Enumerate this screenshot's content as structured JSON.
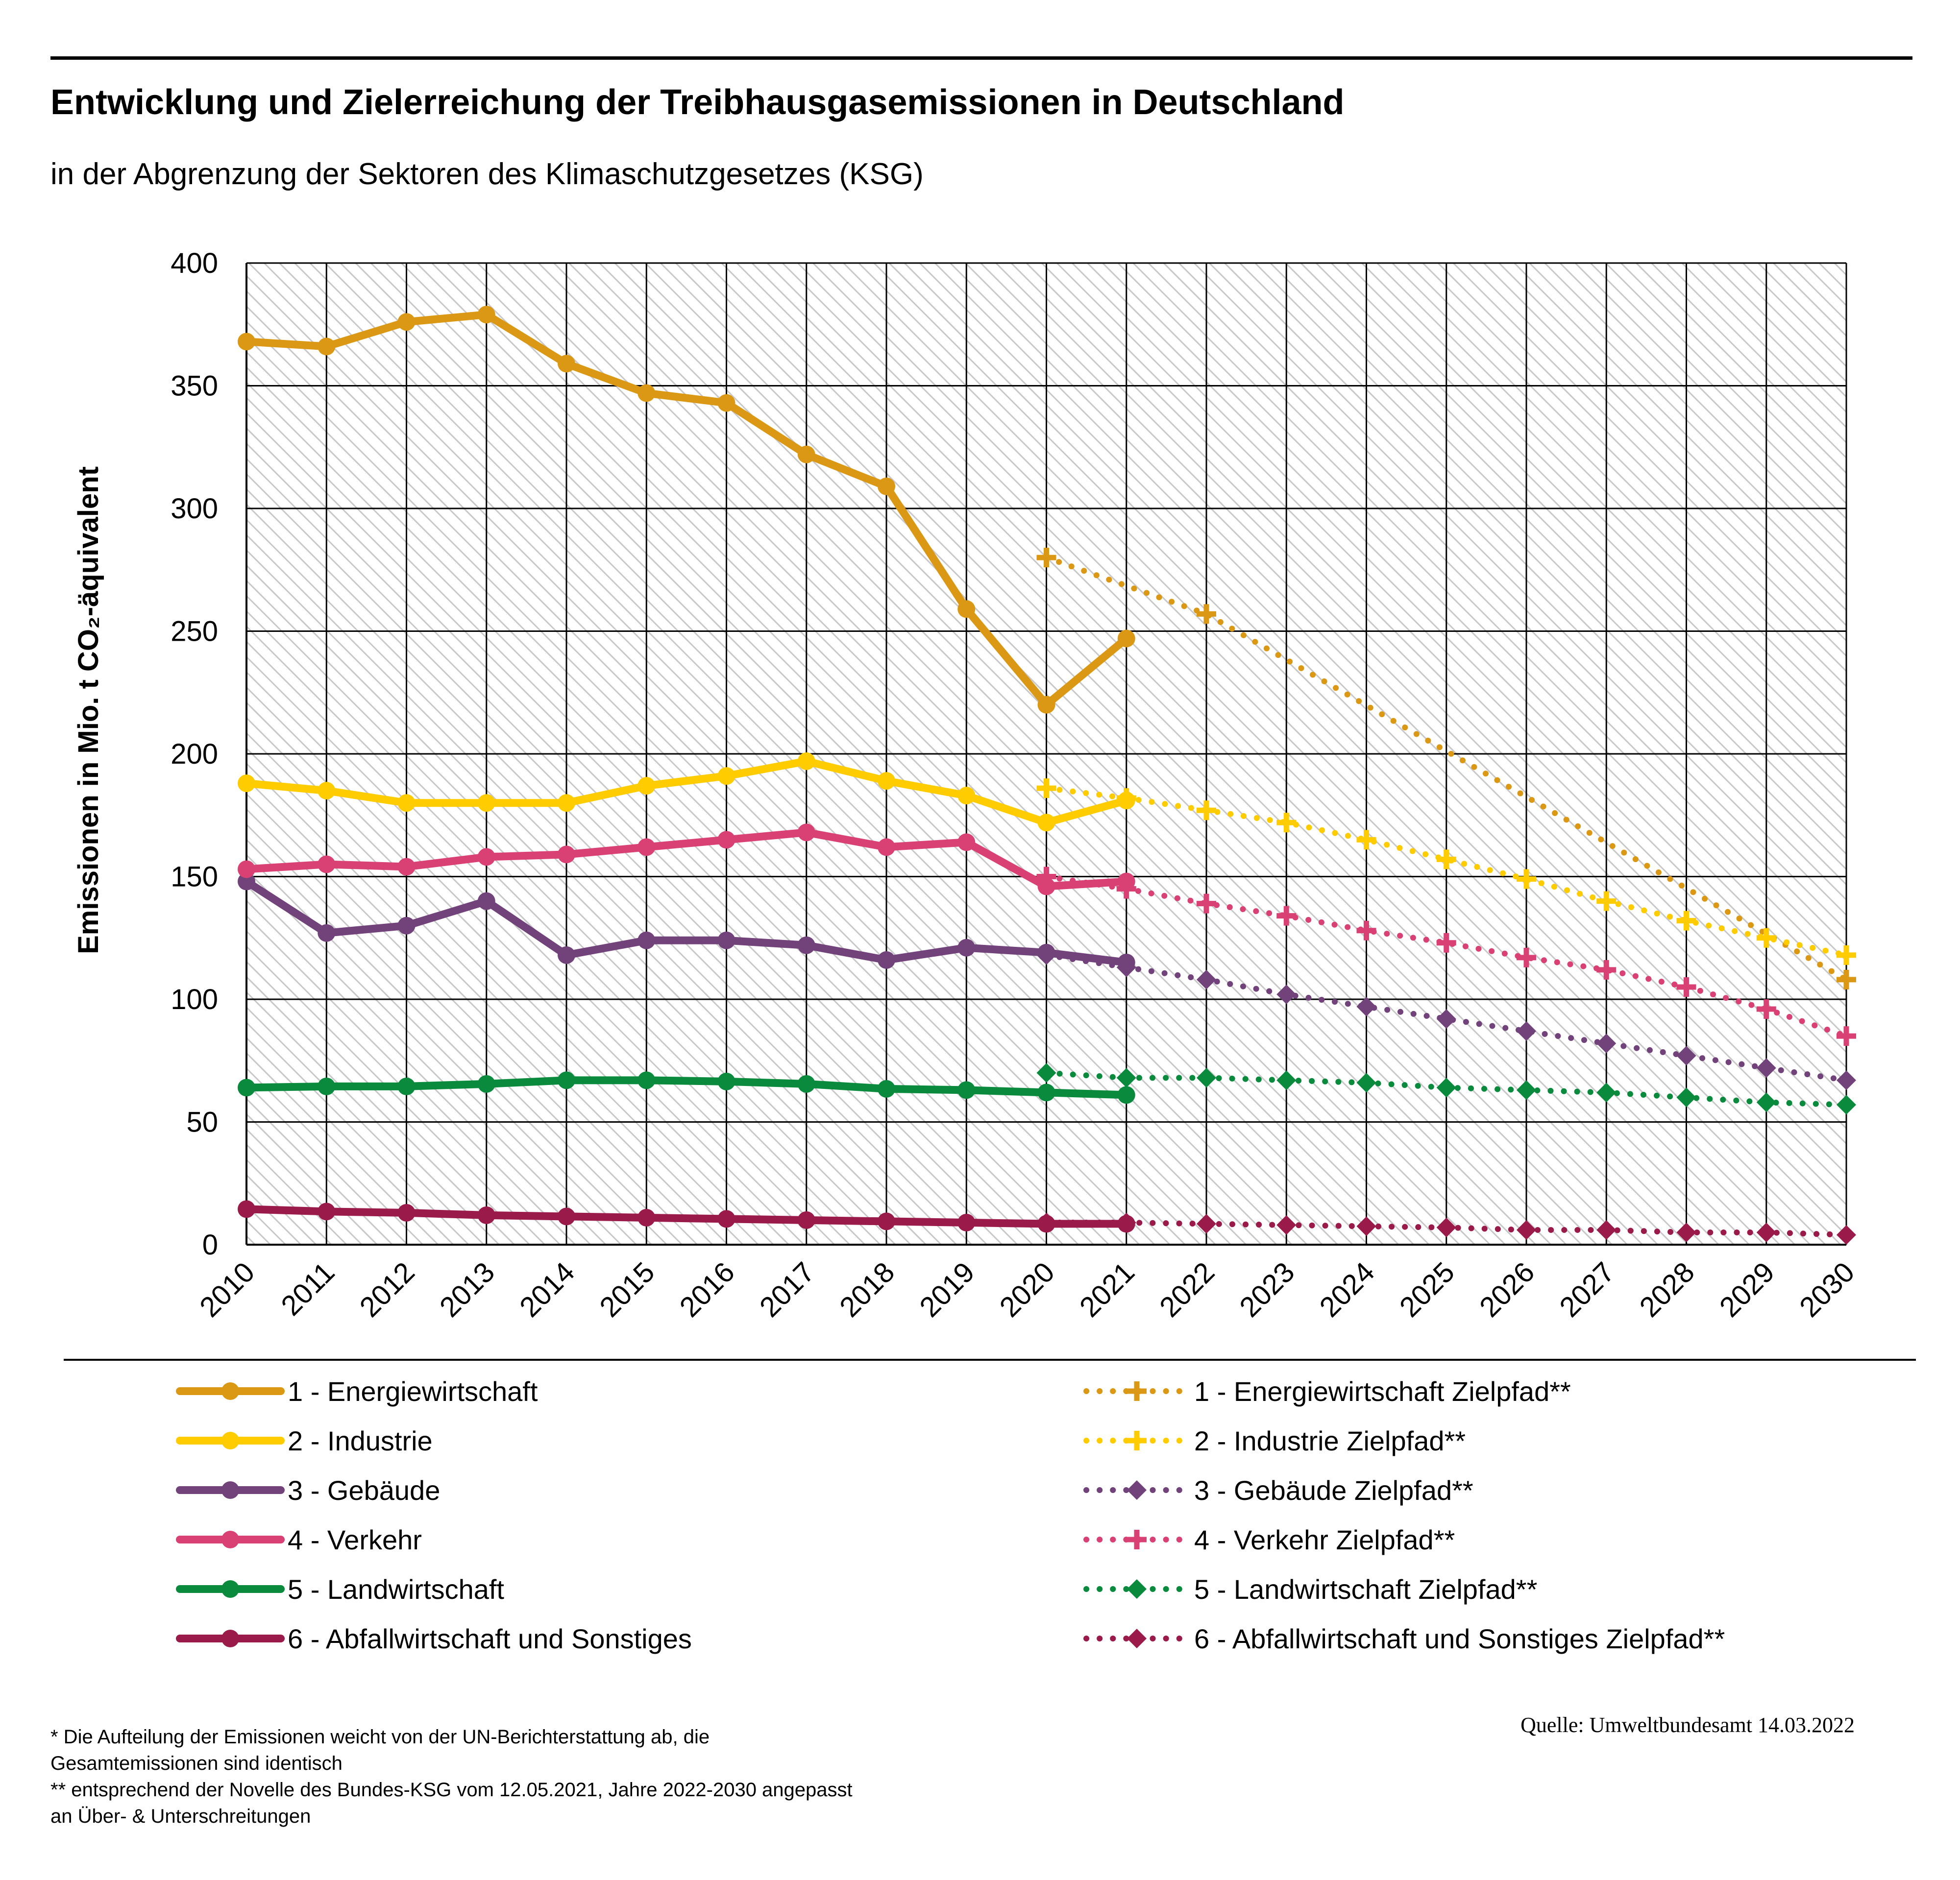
{
  "header": {
    "title": "Entwicklung und Zielerreichung der Treibhausgasemissionen in Deutschland",
    "subtitle": "in der Abgrenzung der Sektoren des Klimaschutzgesetzes (KSG)"
  },
  "chart_data": {
    "type": "line",
    "ylabel": "Emissionen in Mio. t CO₂-äquivalent",
    "ylim": [
      0,
      400
    ],
    "yticks": [
      0,
      50,
      100,
      150,
      200,
      250,
      300,
      350,
      400
    ],
    "grid": true,
    "legend_position": "bottom",
    "categories": [
      "2010",
      "2011",
      "2012",
      "2013",
      "2014",
      "2015",
      "2016",
      "2017",
      "2018",
      "2019",
      "2020",
      "2021",
      "2022",
      "2023",
      "2024",
      "2025",
      "2026",
      "2027",
      "2028",
      "2029",
      "2030"
    ],
    "series": [
      {
        "name": "1 - Energiewirtschaft",
        "color": "#da9814",
        "style": "solid",
        "marker": "circle",
        "x": [
          "2010",
          "2011",
          "2012",
          "2013",
          "2014",
          "2015",
          "2016",
          "2017",
          "2018",
          "2019",
          "2020",
          "2021"
        ],
        "values": [
          368,
          366,
          376,
          379,
          359,
          347,
          343,
          322,
          309,
          259,
          220,
          247
        ]
      },
      {
        "name": "2 - Industrie",
        "color": "#ffcc00",
        "style": "solid",
        "marker": "circle",
        "x": [
          "2010",
          "2011",
          "2012",
          "2013",
          "2014",
          "2015",
          "2016",
          "2017",
          "2018",
          "2019",
          "2020",
          "2021"
        ],
        "values": [
          188,
          185,
          180,
          180,
          180,
          187,
          191,
          197,
          189,
          183,
          172,
          181
        ]
      },
      {
        "name": "3 - Gebäude",
        "color": "#71437a",
        "style": "solid",
        "marker": "circle",
        "x": [
          "2010",
          "2011",
          "2012",
          "2013",
          "2014",
          "2015",
          "2016",
          "2017",
          "2018",
          "2019",
          "2020",
          "2021"
        ],
        "values": [
          148,
          127,
          130,
          140,
          118,
          124,
          124,
          122,
          116,
          121,
          119,
          115
        ]
      },
      {
        "name": "4 - Verkehr",
        "color": "#d94174",
        "style": "solid",
        "marker": "circle",
        "x": [
          "2010",
          "2011",
          "2012",
          "2013",
          "2014",
          "2015",
          "2016",
          "2017",
          "2018",
          "2019",
          "2020",
          "2021"
        ],
        "values": [
          153,
          155,
          154,
          158,
          159,
          162,
          165,
          168,
          162,
          164,
          146,
          148
        ]
      },
      {
        "name": "5 - Landwirtschaft",
        "color": "#0a8a3c",
        "style": "solid",
        "marker": "circle",
        "x": [
          "2010",
          "2011",
          "2012",
          "2013",
          "2014",
          "2015",
          "2016",
          "2017",
          "2018",
          "2019",
          "2020",
          "2021"
        ],
        "values": [
          64,
          64.5,
          64.5,
          65.5,
          67,
          67,
          66.5,
          65.5,
          63.5,
          63,
          62,
          61
        ]
      },
      {
        "name": "6 - Abfallwirtschaft und Sonstiges",
        "color": "#9a1a4a",
        "style": "solid",
        "marker": "circle",
        "x": [
          "2010",
          "2011",
          "2012",
          "2013",
          "2014",
          "2015",
          "2016",
          "2017",
          "2018",
          "2019",
          "2020",
          "2021"
        ],
        "values": [
          14.5,
          13.5,
          13,
          12,
          11.5,
          11,
          10.5,
          10,
          9.5,
          9,
          8.5,
          8.5
        ]
      },
      {
        "name": "1 - Energiewirtschaft Zielpfad**",
        "color": "#da9814",
        "style": "dotted",
        "marker": "plus",
        "x": [
          "2020",
          "2022",
          "2030"
        ],
        "values": [
          280,
          257,
          108
        ]
      },
      {
        "name": "2 - Industrie Zielpfad**",
        "color": "#ffcc00",
        "style": "dotted",
        "marker": "plus",
        "x": [
          "2020",
          "2021",
          "2022",
          "2023",
          "2024",
          "2025",
          "2026",
          "2027",
          "2028",
          "2029",
          "2030"
        ],
        "values": [
          186,
          182,
          177,
          172,
          165,
          157,
          149,
          140,
          132,
          125,
          118
        ]
      },
      {
        "name": "3 - Gebäude Zielpfad**",
        "color": "#71437a",
        "style": "dotted",
        "marker": "diamond",
        "x": [
          "2020",
          "2021",
          "2022",
          "2023",
          "2024",
          "2025",
          "2026",
          "2027",
          "2028",
          "2029",
          "2030"
        ],
        "values": [
          118,
          113,
          108,
          102,
          97,
          92,
          87,
          82,
          77,
          72,
          67
        ]
      },
      {
        "name": "4 - Verkehr Zielpfad**",
        "color": "#d94174",
        "style": "dotted",
        "marker": "plus",
        "x": [
          "2020",
          "2021",
          "2022",
          "2023",
          "2024",
          "2025",
          "2026",
          "2027",
          "2028",
          "2029",
          "2030"
        ],
        "values": [
          150,
          145,
          139,
          134,
          128,
          123,
          117,
          112,
          105,
          96,
          85
        ]
      },
      {
        "name": "5 - Landwirtschaft Zielpfad**",
        "color": "#0a8a3c",
        "style": "dotted",
        "marker": "diamond",
        "x": [
          "2020",
          "2021",
          "2022",
          "2023",
          "2024",
          "2025",
          "2026",
          "2027",
          "2028",
          "2029",
          "2030"
        ],
        "values": [
          70,
          68,
          68,
          67,
          66,
          64,
          63,
          62,
          60,
          58,
          57
        ]
      },
      {
        "name": "6 - Abfallwirtschaft und Sonstiges Zielpfad**",
        "color": "#9a1a4a",
        "style": "dotted",
        "marker": "diamond",
        "x": [
          "2020",
          "2021",
          "2022",
          "2023",
          "2024",
          "2025",
          "2026",
          "2027",
          "2028",
          "2029",
          "2030"
        ],
        "values": [
          9,
          9,
          8.5,
          8,
          7.5,
          7,
          6,
          6,
          5,
          5,
          4
        ]
      }
    ]
  },
  "legend": {
    "items": [
      {
        "label": "1 - Energiewirtschaft",
        "color": "#da9814",
        "style": "solid",
        "marker": "circle"
      },
      {
        "label": "2 - Industrie",
        "color": "#ffcc00",
        "style": "solid",
        "marker": "circle"
      },
      {
        "label": "3 - Gebäude",
        "color": "#71437a",
        "style": "solid",
        "marker": "circle"
      },
      {
        "label": "4 - Verkehr",
        "color": "#d94174",
        "style": "solid",
        "marker": "circle"
      },
      {
        "label": "5 - Landwirtschaft",
        "color": "#0a8a3c",
        "style": "solid",
        "marker": "circle"
      },
      {
        "label": "6 - Abfallwirtschaft und Sonstiges",
        "color": "#9a1a4a",
        "style": "solid",
        "marker": "circle"
      },
      {
        "label": "1 - Energiewirtschaft Zielpfad**",
        "color": "#da9814",
        "style": "dotted",
        "marker": "plus"
      },
      {
        "label": "2 - Industrie Zielpfad**",
        "color": "#ffcc00",
        "style": "dotted",
        "marker": "plus"
      },
      {
        "label": "3 - Gebäude Zielpfad**",
        "color": "#71437a",
        "style": "dotted",
        "marker": "diamond"
      },
      {
        "label": "4 - Verkehr Zielpfad**",
        "color": "#d94174",
        "style": "dotted",
        "marker": "plus"
      },
      {
        "label": "5 - Landwirtschaft Zielpfad**",
        "color": "#0a8a3c",
        "style": "dotted",
        "marker": "diamond"
      },
      {
        "label": "6 - Abfallwirtschaft und Sonstiges Zielpfad**",
        "color": "#9a1a4a",
        "style": "dotted",
        "marker": "diamond"
      }
    ]
  },
  "footnotes": {
    "line1": "* Die Aufteilung der Emissionen weicht von der UN-Berichterstattung ab, die",
    "line2": "Gesamtemissionen sind identisch",
    "line3": "** entsprechend der Novelle des Bundes-KSG vom 12.05.2021, Jahre 2022-2030 angepasst",
    "line4": "an Über- & Unterschreitungen"
  },
  "source": "Quelle: Umweltbundesamt  14.03.2022"
}
